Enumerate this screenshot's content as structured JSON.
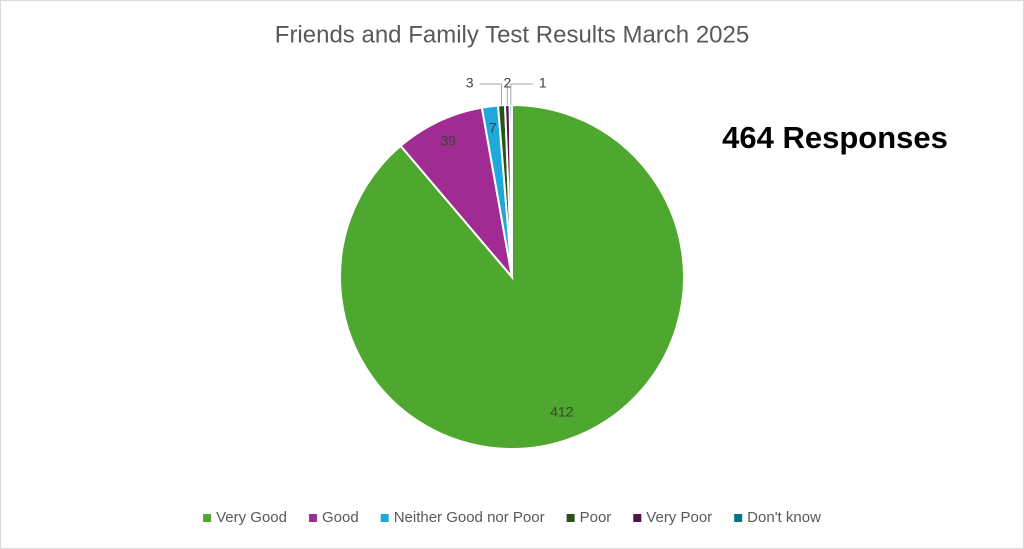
{
  "chart_data": {
    "type": "pie",
    "title": "Friends and Family Test Results March 2025",
    "categories": [
      "Very Good",
      "Good",
      "Neither Good nor Poor",
      "Poor",
      "Very Poor",
      "Don't know"
    ],
    "values": [
      412,
      39,
      7,
      3,
      2,
      1
    ],
    "colors": [
      "#4ea72e",
      "#a02b93",
      "#1ea8db",
      "#275317",
      "#4f1444",
      "#0e6f8a"
    ],
    "annotation": "464 Responses",
    "legend": "bottom"
  }
}
